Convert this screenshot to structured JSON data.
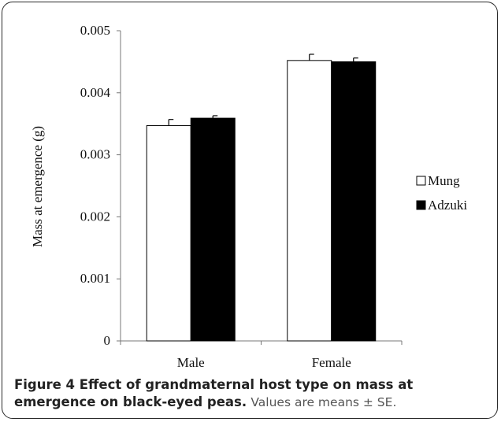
{
  "chart_data": {
    "type": "bar",
    "categories": [
      "Male",
      "Female"
    ],
    "series": [
      {
        "name": "Mung",
        "values": [
          0.00347,
          0.00452
        ],
        "errors": [
          0.0001,
          0.0001
        ],
        "color": "#ffffff"
      },
      {
        "name": "Adzuki",
        "values": [
          0.00359,
          0.0045
        ],
        "errors": [
          4e-05,
          6e-05
        ],
        "color": "#000000"
      }
    ],
    "ylabel": "Mass at emergence (g)",
    "xlabel": "",
    "ylim": [
      0,
      0.005
    ],
    "yticks": [
      "0",
      "0.001",
      "0.002",
      "0.003",
      "0.004",
      "0.005"
    ],
    "grid": false,
    "legend_position": "right"
  },
  "caption": {
    "title": "Figure 4 Effect of grandmaternal host type on mass at emergence on black-eyed peas.",
    "note": "Values are means ± SE."
  }
}
